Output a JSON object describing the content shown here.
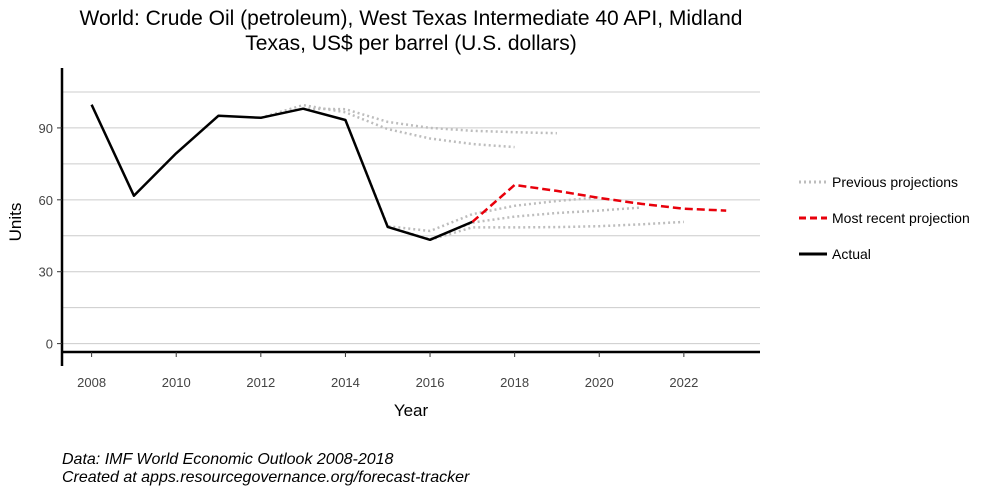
{
  "title_line1": "World: Crude Oil (petroleum), West Texas Intermediate 40 API, Midland",
  "title_line2": "Texas, US$ per barrel (U.S. dollars)",
  "caption_line1": "Data: IMF World Economic Outlook 2008-2018",
  "caption_line2": "Created at apps.resourcegovernance.org/forecast-tracker",
  "legend": [
    {
      "label": "Previous projections",
      "style": "dotted",
      "color": "#bdbdbd"
    },
    {
      "label": "Most recent projection",
      "style": "dashed",
      "color": "#e8000b"
    },
    {
      "label": "Actual",
      "style": "solid",
      "color": "#000000"
    }
  ],
  "chart_data": {
    "type": "line",
    "xlabel": "Year",
    "ylabel": "Units",
    "xlim": [
      2007.3,
      2023.8
    ],
    "ylim": [
      -3.5,
      115
    ],
    "x_ticks": [
      2008,
      2010,
      2012,
      2014,
      2016,
      2018,
      2020,
      2022
    ],
    "y_ticks": [
      0,
      30,
      60,
      90
    ],
    "gridlines": "horizontal",
    "legend_position": "right",
    "series": [
      {
        "name": "Actual",
        "style": "solid",
        "color": "#000000",
        "x": [
          2008,
          2009,
          2010,
          2011,
          2012,
          2013,
          2014,
          2015,
          2016,
          2017
        ],
        "y": [
          99.7,
          61.7,
          79.4,
          95.1,
          94.2,
          98.0,
          93.3,
          48.7,
          43.3,
          50.8
        ]
      },
      {
        "name": "Most recent projection",
        "style": "dashed",
        "color": "#e8000b",
        "x": [
          2017,
          2018,
          2019,
          2020,
          2021,
          2022,
          2023
        ],
        "y": [
          50.8,
          66.2,
          63.7,
          60.8,
          58.3,
          56.3,
          55.5
        ]
      },
      {
        "name": "Previous projections",
        "style": "dotted",
        "color": "#bdbdbd",
        "projections": [
          {
            "x": [
              2012,
              2013,
              2014,
              2015,
              2016,
              2017,
              2018
            ],
            "y": [
              94.2,
              99.5,
              96.5,
              89.5,
              85.6,
              83.3,
              82.0
            ]
          },
          {
            "x": [
              2013,
              2014,
              2015,
              2016,
              2017,
              2018,
              2019
            ],
            "y": [
              98.0,
              97.8,
              92.5,
              90.0,
              88.8,
              88.2,
              87.8
            ]
          },
          {
            "x": [
              2014,
              2015,
              2016,
              2017,
              2018,
              2019,
              2020
            ],
            "y": [
              93.3,
              49.0,
              47.0,
              54.0,
              57.5,
              59.5,
              61.0
            ]
          },
          {
            "x": [
              2015,
              2016,
              2017,
              2018,
              2019,
              2020,
              2021
            ],
            "y": [
              48.7,
              43.5,
              50.5,
              53.0,
              54.5,
              55.5,
              56.8
            ]
          },
          {
            "x": [
              2016,
              2017,
              2018,
              2019,
              2020,
              2021,
              2022
            ],
            "y": [
              43.3,
              48.5,
              48.5,
              48.6,
              49.0,
              49.8,
              50.8
            ]
          }
        ]
      }
    ]
  }
}
